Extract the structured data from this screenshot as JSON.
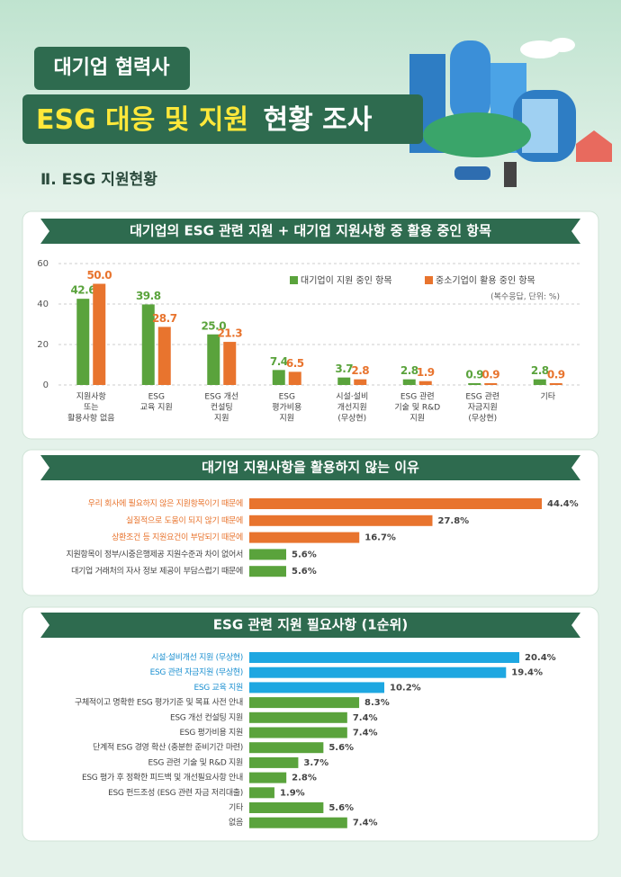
{
  "header": {
    "badge": "대기업 협력사",
    "title_highlight": "ESG 대응 및 지원",
    "title_rest": "현황 조사",
    "section": "Ⅱ. ESG 지원현황"
  },
  "chart_data": [
    {
      "type": "bar",
      "title": "대기업의 ESG 관련 지원 + 대기업 지원사항 중 활용 중인 항목",
      "categories": [
        [
          "지원사항",
          "또는",
          "활용사항 없음"
        ],
        [
          "ESG",
          "교육 지원"
        ],
        [
          "ESG 개선",
          "컨설팅",
          "지원"
        ],
        [
          "ESG",
          "평가비용",
          "지원"
        ],
        [
          "시설·설비",
          "개선지원",
          "(무상현)"
        ],
        [
          "ESG 관련",
          "기술 및 R&D",
          "지원"
        ],
        [
          "ESG 관련",
          "자금지원",
          "(무상현)"
        ],
        [
          "기타"
        ]
      ],
      "series": [
        {
          "name": "대기업이 지원 중인 항목",
          "color": "#5aa33c",
          "values": [
            42.6,
            39.8,
            25.0,
            7.4,
            3.7,
            2.8,
            0.9,
            2.8
          ],
          "value_labels": [
            "42.6",
            "39.8",
            "25.0",
            "7.4",
            "3.7",
            "2.8",
            "0.9",
            "2.8"
          ]
        },
        {
          "name": "중소기업이 활용 중인 항목",
          "color": "#e8742e",
          "values": [
            50.0,
            28.7,
            21.3,
            6.5,
            2.8,
            1.9,
            0.9,
            0.9
          ],
          "value_labels": [
            "50.0",
            "28.7",
            "21.3",
            "6.5",
            "2.8",
            "1.9",
            "0.9",
            "0.9"
          ]
        }
      ],
      "note": "(복수응답, 단위: %)",
      "ylim": [
        0,
        60
      ],
      "yticks": [
        0,
        20,
        40,
        60
      ],
      "grid": true
    },
    {
      "type": "barh",
      "title": "대기업 지원사항을 활용하지 않는 이유",
      "categories": [
        "우리 회사에 필요하지 않은 지원항목이기 때문에",
        "실질적으로 도움이 되지 않기 때문에",
        "상환조건 등 지원요건이 부담되기 때문에",
        "지원항목이 정부/시중은행제공 지원수준과 차이 없어서",
        "대기업 거래처의 자사 정보 제공이 부담스럽기 때문에"
      ],
      "values": [
        44.4,
        27.8,
        16.7,
        5.6,
        5.6
      ],
      "value_labels": [
        "44.4%",
        "27.8%",
        "16.7%",
        "5.6%",
        "5.6%"
      ],
      "colors": [
        "#e8742e",
        "#e8742e",
        "#e8742e",
        "#5aa33c",
        "#5aa33c"
      ],
      "label_colors": [
        "#e8742e",
        "#e8742e",
        "#e8742e",
        "#444444",
        "#444444"
      ]
    },
    {
      "type": "barh",
      "title": "ESG 관련 지원 필요사항 (1순위)",
      "categories": [
        "시설·설비개선 지원 (무상현)",
        "ESG 관련 자금지원 (무상현)",
        "ESG 교육 지원",
        "구체적이고 명확한 ESG 평가기준 및 목표 사전 안내",
        "ESG 개선 컨설팅 지원",
        "ESG 평가비용 지원",
        "단계적 ESG 경영 확산 (충분한 준비기간 마련)",
        "ESG 관련 기술 및 R&D 지원",
        "ESG 평가 후 정확한 피드백 및 개선필요사항 안내",
        "ESG 펀드조성 (ESG 관련 자금 저리대출)",
        "기타",
        "없음"
      ],
      "values": [
        20.4,
        19.4,
        10.2,
        8.3,
        7.4,
        7.4,
        5.6,
        3.7,
        2.8,
        1.9,
        5.6,
        7.4
      ],
      "value_labels": [
        "20.4%",
        "19.4%",
        "10.2%",
        "8.3%",
        "7.4%",
        "7.4%",
        "5.6%",
        "3.7%",
        "2.8%",
        "1.9%",
        "5.6%",
        "7.4%"
      ],
      "colors": [
        "#1ea7e1",
        "#1ea7e1",
        "#1ea7e1",
        "#5aa33c",
        "#5aa33c",
        "#5aa33c",
        "#5aa33c",
        "#5aa33c",
        "#5aa33c",
        "#5aa33c",
        "#5aa33c",
        "#5aa33c"
      ],
      "label_colors": [
        "#1a8fd0",
        "#1a8fd0",
        "#1a8fd0",
        "#444444",
        "#444444",
        "#444444",
        "#444444",
        "#444444",
        "#444444",
        "#444444",
        "#444444",
        "#444444"
      ]
    }
  ]
}
